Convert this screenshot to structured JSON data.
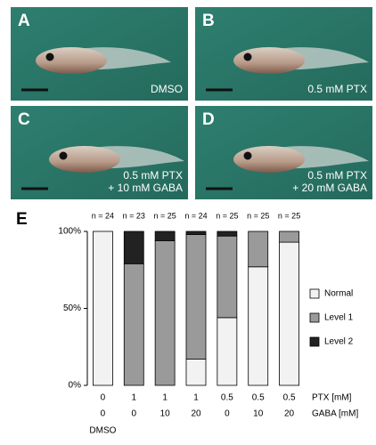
{
  "panels": [
    {
      "label": "A",
      "caption": [
        "DMSO"
      ]
    },
    {
      "label": "B",
      "caption": [
        "0.5 mM PTX"
      ]
    },
    {
      "label": "C",
      "caption": [
        "0.5 mM PTX",
        "+ 10 mM GABA"
      ]
    },
    {
      "label": "D",
      "caption": [
        "0.5 mM PTX",
        "+ 20 mM GABA"
      ]
    }
  ],
  "chart_data": {
    "type": "stacked-bar",
    "panel_label": "E",
    "n_labels": [
      "n = 24",
      "n = 23",
      "n = 25",
      "n = 24",
      "n = 25",
      "n = 25",
      "n = 25"
    ],
    "ptx": [
      "0",
      "1",
      "1",
      "1",
      "0.5",
      "0.5",
      "0.5"
    ],
    "gaba": [
      "0",
      "0",
      "10",
      "20",
      "0",
      "10",
      "20"
    ],
    "ptx_label": "PTX [mM]",
    "gaba_label": "GABA [mM]",
    "control_label": "DMSO",
    "series": [
      {
        "name": "Normal",
        "color": "#f2f2f2",
        "values": [
          100,
          0,
          0,
          17,
          44,
          77,
          93
        ]
      },
      {
        "name": "Level 1",
        "color": "#9a9a9a",
        "values": [
          0,
          79,
          94,
          81,
          53,
          23,
          7
        ]
      },
      {
        "name": "Level 2",
        "color": "#222222",
        "values": [
          0,
          21,
          6,
          2,
          3,
          0,
          0
        ]
      }
    ],
    "ylim": [
      0,
      100
    ],
    "yticks": [
      {
        "value": 0,
        "label": "0%"
      },
      {
        "value": 50,
        "label": "50%"
      },
      {
        "value": 100,
        "label": "100%"
      }
    ]
  }
}
